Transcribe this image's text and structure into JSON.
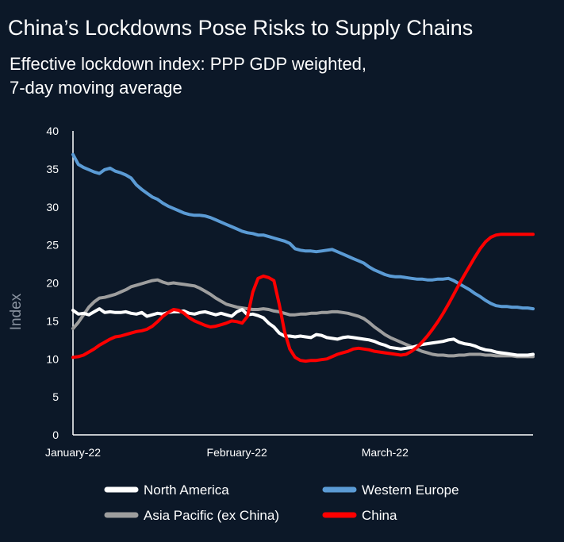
{
  "title": "China’s Lockdowns Pose Risks to Supply Chains",
  "subtitle_lines": [
    "Effective lockdown index: PPP GDP weighted,",
    "7-day moving average"
  ],
  "chart_data": {
    "type": "line",
    "title": "China’s Lockdowns Pose Risks to Supply Chains",
    "subtitle": "Effective lockdown index: PPP GDP weighted, 7-day moving average",
    "ylabel": "Index",
    "xlabel": "",
    "ylim": [
      0,
      40
    ],
    "yticks": [
      "0",
      "5",
      "10",
      "15",
      "20",
      "25",
      "30",
      "35",
      "40"
    ],
    "x_tick_labels": [
      {
        "label": "January-22",
        "day": 0
      },
      {
        "label": "February-22",
        "day": 31
      },
      {
        "label": "March-22",
        "day": 59
      }
    ],
    "x_range": [
      0,
      87
    ],
    "grid": false,
    "legend_position": "bottom",
    "colors": {
      "background": "#0c1828",
      "North America": "#ffffff",
      "Western Europe": "#5b9bd5",
      "Asia Pacific (ex China)": "#9e9e9e",
      "China": "#ff0000"
    },
    "series": [
      {
        "name": "North America",
        "color": "#ffffff",
        "x": [
          0,
          1,
          2,
          3,
          4,
          5,
          6,
          7,
          8,
          9,
          10,
          11,
          12,
          13,
          14,
          15,
          16,
          17,
          18,
          19,
          20,
          21,
          22,
          23,
          24,
          25,
          26,
          27,
          28,
          29,
          30,
          31,
          32,
          33,
          34,
          35,
          36,
          37,
          38,
          39,
          40,
          41,
          42,
          43,
          44,
          45,
          46,
          47,
          48,
          49,
          50,
          51,
          52,
          53,
          54,
          55,
          56,
          57,
          58,
          59,
          60,
          61,
          62,
          63,
          64,
          65,
          66,
          67,
          68,
          69,
          70,
          71,
          72,
          73,
          74,
          75,
          76,
          77,
          78,
          79,
          80,
          81,
          82,
          83,
          84,
          85,
          86,
          87
        ],
        "values": [
          16.4,
          15.9,
          16.0,
          15.8,
          16.2,
          16.6,
          16.1,
          16.2,
          16.1,
          16.1,
          16.2,
          16.0,
          15.9,
          16.1,
          15.6,
          15.8,
          16.0,
          15.9,
          16.1,
          16.2,
          16.2,
          16.3,
          16.0,
          15.9,
          16.1,
          16.2,
          16.0,
          15.8,
          16.0,
          15.8,
          15.6,
          16.2,
          16.5,
          15.8,
          15.9,
          15.7,
          15.4,
          14.7,
          14.2,
          13.4,
          13.0,
          13.0,
          12.9,
          13.0,
          12.9,
          12.8,
          13.2,
          13.1,
          12.8,
          12.7,
          12.6,
          12.8,
          12.9,
          12.8,
          12.7,
          12.6,
          12.5,
          12.3,
          12.0,
          11.8,
          11.5,
          11.4,
          11.3,
          11.4,
          11.5,
          11.7,
          11.9,
          12.0,
          12.1,
          12.2,
          12.3,
          12.5,
          12.6,
          12.2,
          12.0,
          11.9,
          11.7,
          11.4,
          11.2,
          11.1,
          10.9,
          10.8,
          10.7,
          10.6,
          10.5,
          10.5,
          10.5,
          10.6
        ]
      },
      {
        "name": "Western Europe",
        "color": "#5b9bd5",
        "x": [
          0,
          1,
          2,
          3,
          4,
          5,
          6,
          7,
          8,
          9,
          10,
          11,
          12,
          13,
          14,
          15,
          16,
          17,
          18,
          19,
          20,
          21,
          22,
          23,
          24,
          25,
          26,
          27,
          28,
          29,
          30,
          31,
          32,
          33,
          34,
          35,
          36,
          37,
          38,
          39,
          40,
          41,
          42,
          43,
          44,
          45,
          46,
          47,
          48,
          49,
          50,
          51,
          52,
          53,
          54,
          55,
          56,
          57,
          58,
          59,
          60,
          61,
          62,
          63,
          64,
          65,
          66,
          67,
          68,
          69,
          70,
          71,
          72,
          73,
          74,
          75,
          76,
          77,
          78,
          79,
          80,
          81,
          82,
          83,
          84,
          85,
          86,
          87
        ],
        "values": [
          36.9,
          35.6,
          35.2,
          34.9,
          34.6,
          34.4,
          34.9,
          35.1,
          34.7,
          34.5,
          34.2,
          33.8,
          32.9,
          32.3,
          31.8,
          31.3,
          31.0,
          30.5,
          30.1,
          29.8,
          29.5,
          29.2,
          29.0,
          28.9,
          28.9,
          28.8,
          28.6,
          28.3,
          28.0,
          27.7,
          27.4,
          27.1,
          26.8,
          26.6,
          26.5,
          26.3,
          26.3,
          26.1,
          25.9,
          25.7,
          25.5,
          25.2,
          24.5,
          24.3,
          24.2,
          24.2,
          24.1,
          24.2,
          24.3,
          24.4,
          24.1,
          23.8,
          23.5,
          23.2,
          22.9,
          22.6,
          22.1,
          21.7,
          21.4,
          21.1,
          20.9,
          20.8,
          20.8,
          20.7,
          20.6,
          20.5,
          20.5,
          20.4,
          20.4,
          20.5,
          20.5,
          20.6,
          20.3,
          19.9,
          19.5,
          19.1,
          18.6,
          18.2,
          17.7,
          17.3,
          17.0,
          16.9,
          16.9,
          16.8,
          16.8,
          16.7,
          16.7,
          16.6
        ]
      },
      {
        "name": "Asia Pacific (ex China)",
        "color": "#9e9e9e",
        "x": [
          0,
          1,
          2,
          3,
          4,
          5,
          6,
          7,
          8,
          9,
          10,
          11,
          12,
          13,
          14,
          15,
          16,
          17,
          18,
          19,
          20,
          21,
          22,
          23,
          24,
          25,
          26,
          27,
          28,
          29,
          30,
          31,
          32,
          33,
          34,
          35,
          36,
          37,
          38,
          39,
          40,
          41,
          42,
          43,
          44,
          45,
          46,
          47,
          48,
          49,
          50,
          51,
          52,
          53,
          54,
          55,
          56,
          57,
          58,
          59,
          60,
          61,
          62,
          63,
          64,
          65,
          66,
          67,
          68,
          69,
          70,
          71,
          72,
          73,
          74,
          75,
          76,
          77,
          78,
          79,
          80,
          81,
          82,
          83,
          84,
          85,
          86,
          87
        ],
        "values": [
          14.0,
          14.8,
          15.8,
          16.8,
          17.5,
          18.0,
          18.1,
          18.3,
          18.5,
          18.8,
          19.1,
          19.5,
          19.7,
          19.9,
          20.1,
          20.3,
          20.4,
          20.1,
          19.9,
          20.0,
          19.9,
          19.8,
          19.7,
          19.6,
          19.3,
          18.9,
          18.5,
          18.0,
          17.6,
          17.2,
          17.0,
          16.8,
          16.7,
          16.6,
          16.5,
          16.5,
          16.6,
          16.5,
          16.3,
          16.2,
          16.0,
          15.8,
          15.8,
          15.9,
          15.9,
          16.0,
          16.0,
          16.1,
          16.1,
          16.2,
          16.2,
          16.1,
          16.0,
          15.8,
          15.6,
          15.3,
          14.8,
          14.2,
          13.7,
          13.2,
          12.8,
          12.5,
          12.2,
          11.9,
          11.6,
          11.3,
          11.0,
          10.8,
          10.6,
          10.5,
          10.5,
          10.4,
          10.4,
          10.5,
          10.5,
          10.6,
          10.6,
          10.6,
          10.5,
          10.5,
          10.4,
          10.4,
          10.4,
          10.4,
          10.3,
          10.3,
          10.3,
          10.3
        ]
      },
      {
        "name": "China",
        "color": "#ff0000",
        "x": [
          0,
          1,
          2,
          3,
          4,
          5,
          6,
          7,
          8,
          9,
          10,
          11,
          12,
          13,
          14,
          15,
          16,
          17,
          18,
          19,
          20,
          21,
          22,
          23,
          24,
          25,
          26,
          27,
          28,
          29,
          30,
          31,
          32,
          33,
          34,
          35,
          36,
          37,
          38,
          39,
          40,
          41,
          42,
          43,
          44,
          45,
          46,
          47,
          48,
          49,
          50,
          51,
          52,
          53,
          54,
          55,
          56,
          57,
          58,
          59,
          60,
          61,
          62,
          63,
          64,
          65,
          66,
          67,
          68,
          69,
          70,
          71,
          72,
          73,
          74,
          75,
          76,
          77,
          78,
          79,
          80,
          81,
          82,
          83,
          84,
          85,
          86,
          87
        ],
        "values": [
          10.2,
          10.3,
          10.5,
          10.9,
          11.3,
          11.8,
          12.2,
          12.6,
          12.9,
          13.0,
          13.2,
          13.4,
          13.6,
          13.7,
          13.9,
          14.3,
          14.9,
          15.6,
          16.1,
          16.5,
          16.4,
          16.0,
          15.4,
          15.0,
          14.7,
          14.4,
          14.2,
          14.3,
          14.5,
          14.7,
          15.0,
          14.9,
          14.7,
          15.6,
          18.8,
          20.6,
          20.9,
          20.7,
          20.3,
          17.2,
          13.6,
          11.3,
          10.2,
          9.8,
          9.7,
          9.8,
          9.8,
          9.9,
          10.0,
          10.3,
          10.6,
          10.8,
          11.0,
          11.3,
          11.4,
          11.3,
          11.2,
          11.0,
          10.9,
          10.8,
          10.7,
          10.6,
          10.5,
          10.6,
          11.0,
          11.5,
          12.2,
          13.0,
          13.9,
          14.9,
          16.0,
          17.2,
          18.5,
          19.8,
          21.0,
          22.2,
          23.4,
          24.5,
          25.4,
          26.0,
          26.3,
          26.4,
          26.4,
          26.4,
          26.4,
          26.4,
          26.4,
          26.4
        ]
      }
    ]
  }
}
